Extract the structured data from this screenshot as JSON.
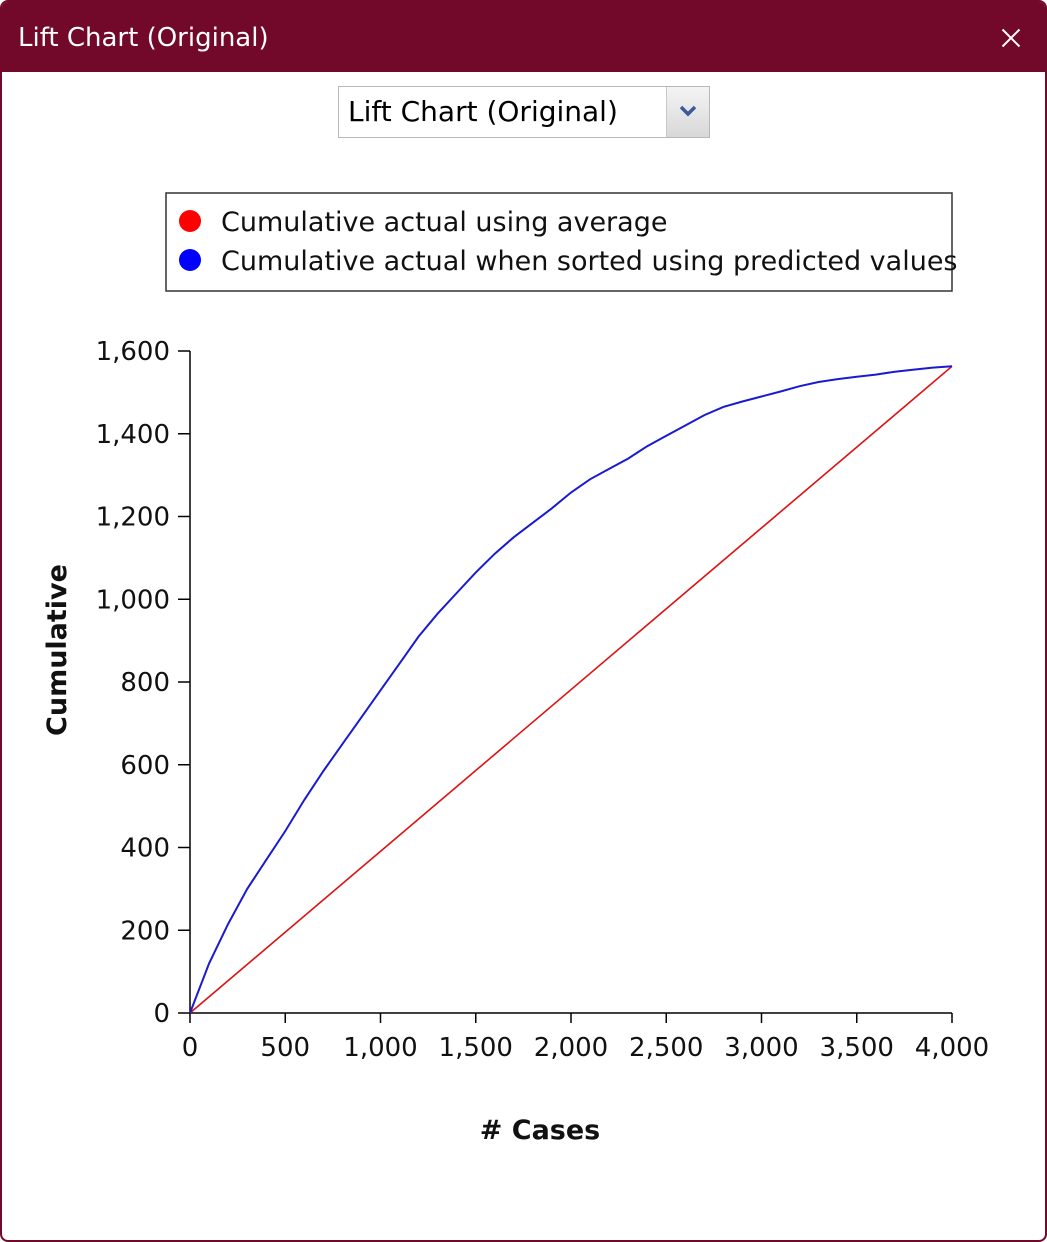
{
  "window": {
    "title": "Lift Chart (Original)",
    "close_icon": "close-icon",
    "titlebar_color": "#72082a"
  },
  "chart_selector": {
    "selected": "Lift Chart (Original)",
    "arrow_icon": "chevron-down-icon"
  },
  "chart_data": {
    "type": "line",
    "xlabel": "# Cases",
    "ylabel": "Cumulative",
    "xlim": [
      0,
      4000
    ],
    "ylim": [
      0,
      1600
    ],
    "x_ticks": [
      "0",
      "500",
      "1,000",
      "1,500",
      "2,000",
      "2,500",
      "3,000",
      "3,500",
      "4,000"
    ],
    "y_ticks": [
      "0",
      "200",
      "400",
      "600",
      "800",
      "1,000",
      "1,200",
      "1,400",
      "1,600"
    ],
    "grid": false,
    "legend_position": "top",
    "series": [
      {
        "name": "Cumulative actual using average",
        "color": "#ff0000",
        "line_color": "#dd1111",
        "x": [
          0,
          4000
        ],
        "y": [
          0,
          1563
        ]
      },
      {
        "name": "Cumulative actual when sorted using predicted values",
        "color": "#0000ff",
        "line_color": "#1a1ad0",
        "x": [
          0,
          100,
          200,
          300,
          400,
          500,
          600,
          700,
          800,
          900,
          1000,
          1100,
          1200,
          1300,
          1400,
          1500,
          1600,
          1700,
          1800,
          1900,
          2000,
          2100,
          2200,
          2300,
          2400,
          2500,
          2600,
          2700,
          2800,
          2900,
          3000,
          3100,
          3200,
          3300,
          3400,
          3500,
          3600,
          3700,
          3800,
          3900,
          4000
        ],
        "y": [
          0,
          120,
          215,
          300,
          370,
          440,
          515,
          585,
          650,
          715,
          780,
          845,
          910,
          965,
          1015,
          1065,
          1110,
          1150,
          1185,
          1220,
          1258,
          1290,
          1315,
          1340,
          1370,
          1395,
          1420,
          1445,
          1465,
          1478,
          1490,
          1502,
          1515,
          1525,
          1532,
          1538,
          1543,
          1550,
          1555,
          1560,
          1563
        ]
      }
    ]
  }
}
